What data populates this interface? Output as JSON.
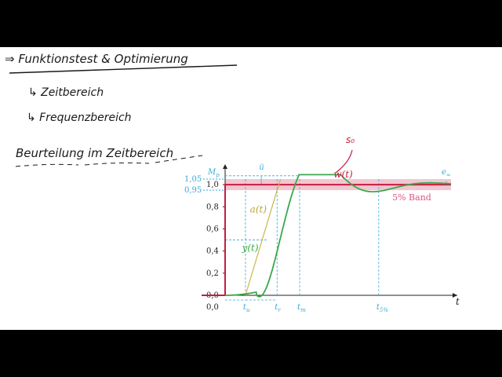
{
  "notes": {
    "line1": "⇒ Funktionstest & Optimierung",
    "line2": "↳ Zeitbereich",
    "line3": "↳ Frequenzbereich",
    "line4": "Beurteilung im Zeitbereich",
    "red_mark": "s₀"
  },
  "colors": {
    "step": "#c21e3f",
    "band": "#f2c6d1",
    "response": "#3aa84a",
    "tangent": "#c9b64a",
    "helper": "#39a9d8"
  },
  "chart_data": {
    "type": "line",
    "title": "",
    "xlabel": "t",
    "ylabel": "",
    "xlim": [
      0,
      10
    ],
    "ylim": [
      0,
      1.1
    ],
    "grid": false,
    "y_ticks": [
      "0,0",
      "0,2",
      "0,4",
      "0,6",
      "0,8",
      "1,0"
    ],
    "y_extra_ticks": [
      "1,05",
      "0,95"
    ],
    "mp_label": "M",
    "mp_sub": "p",
    "x_marks": [
      {
        "label": "t",
        "sub": "u",
        "x": 0.9
      },
      {
        "label": "t",
        "sub": "r",
        "x": 2.3
      },
      {
        "label": "t",
        "sub": "m",
        "x": 3.3
      },
      {
        "label": "t",
        "sub": "5%",
        "x": 6.8
      }
    ],
    "overshoot_label": "ü",
    "e_label": "e",
    "e_sub": "∞",
    "band": {
      "low": 0.95,
      "high": 1.05,
      "label": "5% Band"
    },
    "series": [
      {
        "name": "w(t)",
        "shape": "step",
        "value": 1.0
      },
      {
        "name": "y(t)",
        "shape": "response",
        "mp": 1.08
      },
      {
        "name": "a(t)",
        "shape": "tangent"
      }
    ]
  }
}
